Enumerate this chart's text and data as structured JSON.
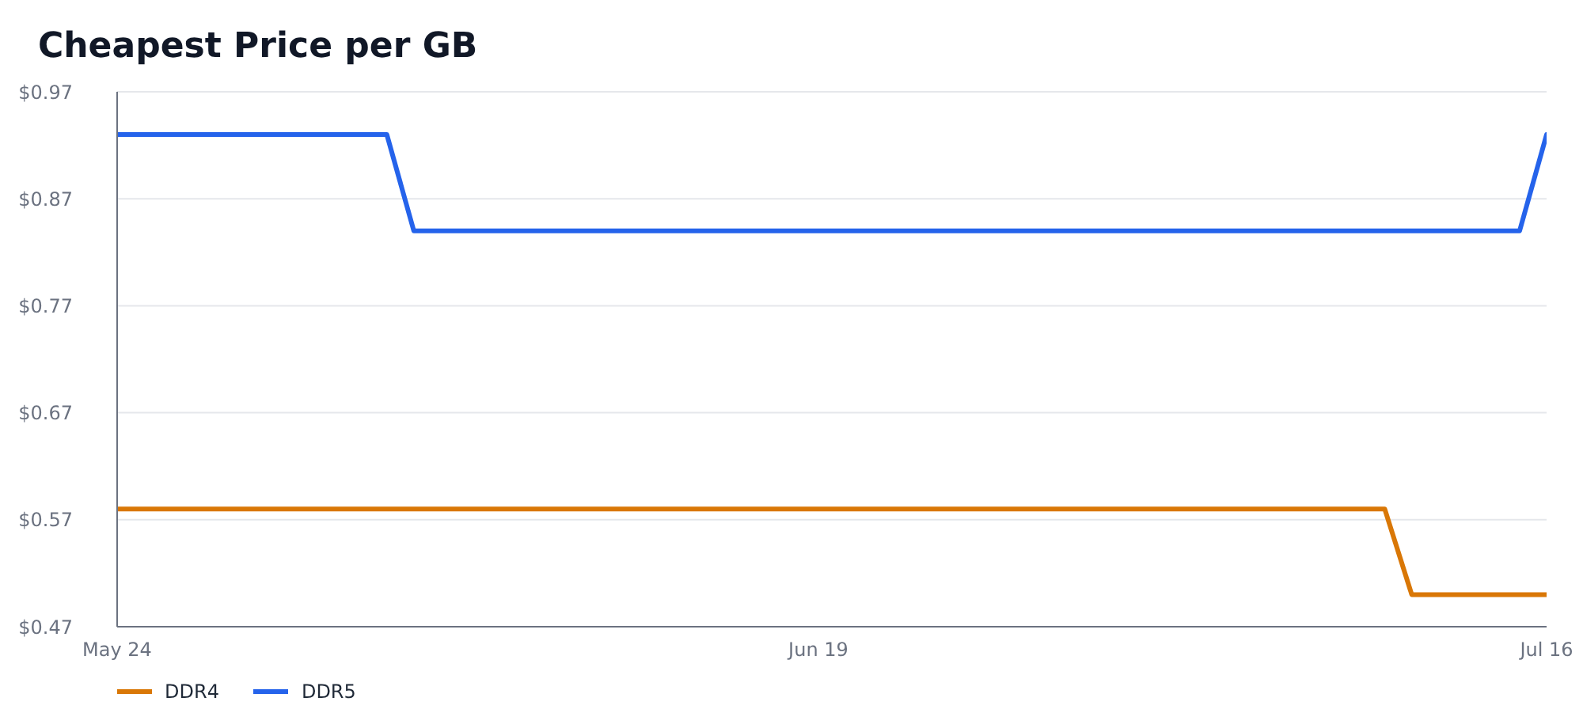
{
  "chart_data": {
    "type": "line",
    "title": "Cheapest Price per GB",
    "xlim": [
      "--05-24",
      "--07-16"
    ],
    "xticks": [
      {
        "value": "--05-24",
        "label": "May 24"
      },
      {
        "value": "--06-19",
        "label": "Jun 19"
      },
      {
        "value": "--07-16",
        "label": "Jul 16"
      }
    ],
    "ylim": [
      0.47,
      0.97
    ],
    "yticks": [
      {
        "value": 0.47,
        "label": "$0.47"
      },
      {
        "value": 0.57,
        "label": "$0.57"
      },
      {
        "value": 0.67,
        "label": "$0.67"
      },
      {
        "value": 0.77,
        "label": "$0.77"
      },
      {
        "value": 0.87,
        "label": "$0.87"
      },
      {
        "value": 0.97,
        "label": "$0.97"
      }
    ],
    "series": [
      {
        "name": "DDR4",
        "color": "#d97706",
        "x": [
          "--05-24",
          "--07-10",
          "--07-11",
          "--07-16"
        ],
        "values": [
          0.58,
          0.58,
          0.5,
          0.5
        ]
      },
      {
        "name": "DDR5",
        "color": "#2563eb",
        "x": [
          "--05-24",
          "--06-03",
          "--06-04",
          "--07-15",
          "--07-16"
        ],
        "values": [
          0.93,
          0.93,
          0.84,
          0.84,
          0.93
        ]
      }
    ],
    "grid": "y",
    "legend": "bottom left",
    "marker": "none",
    "line_style": "solid"
  }
}
